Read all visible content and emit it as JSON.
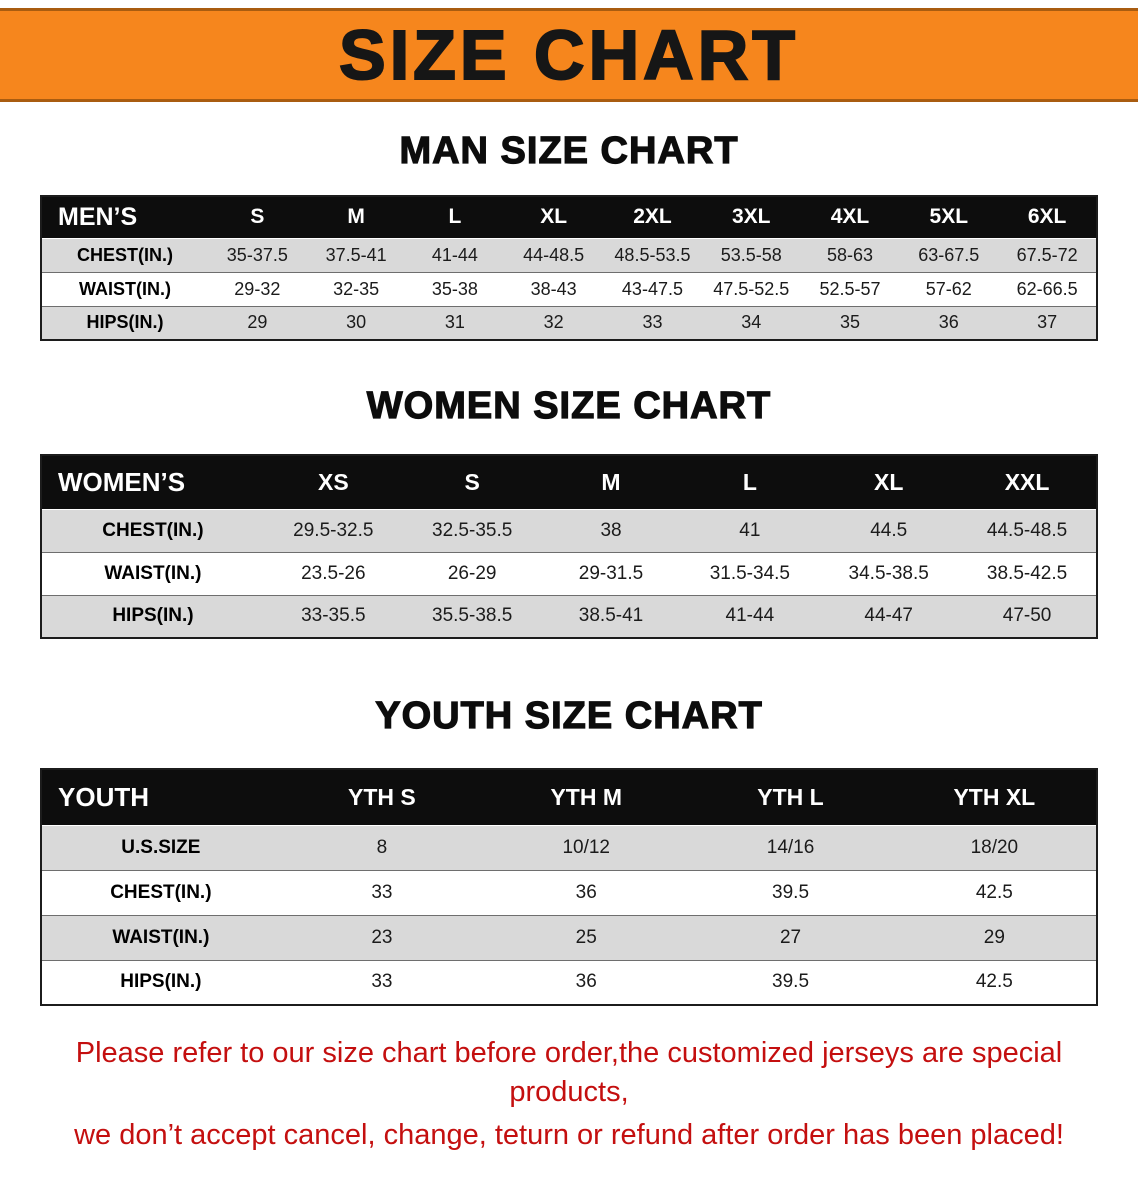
{
  "banner": {
    "title": "SIZE CHART"
  },
  "sections": {
    "men": {
      "heading": "MAN SIZE CHART",
      "table": {
        "header": [
          "MEN’S",
          "S",
          "M",
          "L",
          "XL",
          "2XL",
          "3XL",
          "4XL",
          "5XL",
          "6XL"
        ],
        "rows": [
          [
            "CHEST(IN.)",
            "35-37.5",
            "37.5-41",
            "41-44",
            "44-48.5",
            "48.5-53.5",
            "53.5-58",
            "58-63",
            "63-67.5",
            "67.5-72"
          ],
          [
            "WAIST(IN.)",
            "29-32",
            "32-35",
            "35-38",
            "38-43",
            "43-47.5",
            "47.5-52.5",
            "52.5-57",
            "57-62",
            "62-66.5"
          ],
          [
            "HIPS(IN.)",
            "29",
            "30",
            "31",
            "32",
            "33",
            "34",
            "35",
            "36",
            "37"
          ]
        ]
      }
    },
    "women": {
      "heading": "WOMEN SIZE CHART",
      "table": {
        "header": [
          "WOMEN’S",
          "XS",
          "S",
          "M",
          "L",
          "XL",
          "XXL"
        ],
        "rows": [
          [
            "CHEST(IN.)",
            "29.5-32.5",
            "32.5-35.5",
            "38",
            "41",
            "44.5",
            "44.5-48.5"
          ],
          [
            "WAIST(IN.)",
            "23.5-26",
            "26-29",
            "29-31.5",
            "31.5-34.5",
            "34.5-38.5",
            "38.5-42.5"
          ],
          [
            "HIPS(IN.)",
            "33-35.5",
            "35.5-38.5",
            "38.5-41",
            "41-44",
            "44-47",
            "47-50"
          ]
        ]
      }
    },
    "youth": {
      "heading": "YOUTH SIZE CHART",
      "table": {
        "header": [
          "YOUTH",
          "YTH S",
          "YTH M",
          "YTH L",
          "YTH XL"
        ],
        "rows": [
          [
            "U.S.SIZE",
            "8",
            "10/12",
            "14/16",
            "18/20"
          ],
          [
            "CHEST(IN.)",
            "33",
            "36",
            "39.5",
            "42.5"
          ],
          [
            "WAIST(IN.)",
            "23",
            "25",
            "27",
            "29"
          ],
          [
            "HIPS(IN.)",
            "33",
            "36",
            "39.5",
            "42.5"
          ]
        ]
      }
    }
  },
  "footer": {
    "line1": "Please refer to our size chart before order,the customized jerseys are special products,",
    "line2": "we don’t accept cancel, change, teturn or refund after order has been placed!"
  },
  "colors": {
    "banner_bg": "#f6861d",
    "banner_text": "#161616",
    "table_header_bg": "#0d0d0d",
    "table_header_text": "#ffffff",
    "row_alt_bg": "#d9d9d9",
    "footer_text": "#c40f0f"
  }
}
